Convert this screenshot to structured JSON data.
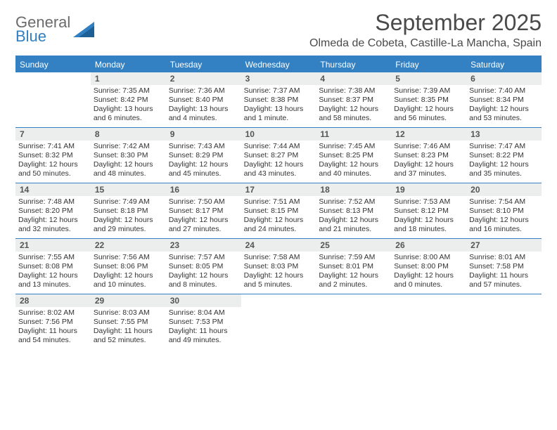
{
  "brand": {
    "name_gray": "General",
    "name_blue": "Blue"
  },
  "title": "September 2025",
  "location": "Olmeda de Cobeta, Castille-La Mancha, Spain",
  "colors": {
    "header_blue": "#3380c2",
    "daynum_bg": "#eceded",
    "text": "#333333",
    "title_text": "#4a4a4a"
  },
  "weekdays": [
    "Sunday",
    "Monday",
    "Tuesday",
    "Wednesday",
    "Thursday",
    "Friday",
    "Saturday"
  ],
  "weeks": [
    [
      {
        "n": "",
        "sunrise": "",
        "sunset": "",
        "daylight": ""
      },
      {
        "n": "1",
        "sunrise": "Sunrise: 7:35 AM",
        "sunset": "Sunset: 8:42 PM",
        "daylight": "Daylight: 13 hours and 6 minutes."
      },
      {
        "n": "2",
        "sunrise": "Sunrise: 7:36 AM",
        "sunset": "Sunset: 8:40 PM",
        "daylight": "Daylight: 13 hours and 4 minutes."
      },
      {
        "n": "3",
        "sunrise": "Sunrise: 7:37 AM",
        "sunset": "Sunset: 8:38 PM",
        "daylight": "Daylight: 13 hours and 1 minute."
      },
      {
        "n": "4",
        "sunrise": "Sunrise: 7:38 AM",
        "sunset": "Sunset: 8:37 PM",
        "daylight": "Daylight: 12 hours and 58 minutes."
      },
      {
        "n": "5",
        "sunrise": "Sunrise: 7:39 AM",
        "sunset": "Sunset: 8:35 PM",
        "daylight": "Daylight: 12 hours and 56 minutes."
      },
      {
        "n": "6",
        "sunrise": "Sunrise: 7:40 AM",
        "sunset": "Sunset: 8:34 PM",
        "daylight": "Daylight: 12 hours and 53 minutes."
      }
    ],
    [
      {
        "n": "7",
        "sunrise": "Sunrise: 7:41 AM",
        "sunset": "Sunset: 8:32 PM",
        "daylight": "Daylight: 12 hours and 50 minutes."
      },
      {
        "n": "8",
        "sunrise": "Sunrise: 7:42 AM",
        "sunset": "Sunset: 8:30 PM",
        "daylight": "Daylight: 12 hours and 48 minutes."
      },
      {
        "n": "9",
        "sunrise": "Sunrise: 7:43 AM",
        "sunset": "Sunset: 8:29 PM",
        "daylight": "Daylight: 12 hours and 45 minutes."
      },
      {
        "n": "10",
        "sunrise": "Sunrise: 7:44 AM",
        "sunset": "Sunset: 8:27 PM",
        "daylight": "Daylight: 12 hours and 43 minutes."
      },
      {
        "n": "11",
        "sunrise": "Sunrise: 7:45 AM",
        "sunset": "Sunset: 8:25 PM",
        "daylight": "Daylight: 12 hours and 40 minutes."
      },
      {
        "n": "12",
        "sunrise": "Sunrise: 7:46 AM",
        "sunset": "Sunset: 8:23 PM",
        "daylight": "Daylight: 12 hours and 37 minutes."
      },
      {
        "n": "13",
        "sunrise": "Sunrise: 7:47 AM",
        "sunset": "Sunset: 8:22 PM",
        "daylight": "Daylight: 12 hours and 35 minutes."
      }
    ],
    [
      {
        "n": "14",
        "sunrise": "Sunrise: 7:48 AM",
        "sunset": "Sunset: 8:20 PM",
        "daylight": "Daylight: 12 hours and 32 minutes."
      },
      {
        "n": "15",
        "sunrise": "Sunrise: 7:49 AM",
        "sunset": "Sunset: 8:18 PM",
        "daylight": "Daylight: 12 hours and 29 minutes."
      },
      {
        "n": "16",
        "sunrise": "Sunrise: 7:50 AM",
        "sunset": "Sunset: 8:17 PM",
        "daylight": "Daylight: 12 hours and 27 minutes."
      },
      {
        "n": "17",
        "sunrise": "Sunrise: 7:51 AM",
        "sunset": "Sunset: 8:15 PM",
        "daylight": "Daylight: 12 hours and 24 minutes."
      },
      {
        "n": "18",
        "sunrise": "Sunrise: 7:52 AM",
        "sunset": "Sunset: 8:13 PM",
        "daylight": "Daylight: 12 hours and 21 minutes."
      },
      {
        "n": "19",
        "sunrise": "Sunrise: 7:53 AM",
        "sunset": "Sunset: 8:12 PM",
        "daylight": "Daylight: 12 hours and 18 minutes."
      },
      {
        "n": "20",
        "sunrise": "Sunrise: 7:54 AM",
        "sunset": "Sunset: 8:10 PM",
        "daylight": "Daylight: 12 hours and 16 minutes."
      }
    ],
    [
      {
        "n": "21",
        "sunrise": "Sunrise: 7:55 AM",
        "sunset": "Sunset: 8:08 PM",
        "daylight": "Daylight: 12 hours and 13 minutes."
      },
      {
        "n": "22",
        "sunrise": "Sunrise: 7:56 AM",
        "sunset": "Sunset: 8:06 PM",
        "daylight": "Daylight: 12 hours and 10 minutes."
      },
      {
        "n": "23",
        "sunrise": "Sunrise: 7:57 AM",
        "sunset": "Sunset: 8:05 PM",
        "daylight": "Daylight: 12 hours and 8 minutes."
      },
      {
        "n": "24",
        "sunrise": "Sunrise: 7:58 AM",
        "sunset": "Sunset: 8:03 PM",
        "daylight": "Daylight: 12 hours and 5 minutes."
      },
      {
        "n": "25",
        "sunrise": "Sunrise: 7:59 AM",
        "sunset": "Sunset: 8:01 PM",
        "daylight": "Daylight: 12 hours and 2 minutes."
      },
      {
        "n": "26",
        "sunrise": "Sunrise: 8:00 AM",
        "sunset": "Sunset: 8:00 PM",
        "daylight": "Daylight: 12 hours and 0 minutes."
      },
      {
        "n": "27",
        "sunrise": "Sunrise: 8:01 AM",
        "sunset": "Sunset: 7:58 PM",
        "daylight": "Daylight: 11 hours and 57 minutes."
      }
    ],
    [
      {
        "n": "28",
        "sunrise": "Sunrise: 8:02 AM",
        "sunset": "Sunset: 7:56 PM",
        "daylight": "Daylight: 11 hours and 54 minutes."
      },
      {
        "n": "29",
        "sunrise": "Sunrise: 8:03 AM",
        "sunset": "Sunset: 7:55 PM",
        "daylight": "Daylight: 11 hours and 52 minutes."
      },
      {
        "n": "30",
        "sunrise": "Sunrise: 8:04 AM",
        "sunset": "Sunset: 7:53 PM",
        "daylight": "Daylight: 11 hours and 49 minutes."
      },
      {
        "n": "",
        "sunrise": "",
        "sunset": "",
        "daylight": ""
      },
      {
        "n": "",
        "sunrise": "",
        "sunset": "",
        "daylight": ""
      },
      {
        "n": "",
        "sunrise": "",
        "sunset": "",
        "daylight": ""
      },
      {
        "n": "",
        "sunrise": "",
        "sunset": "",
        "daylight": ""
      }
    ]
  ]
}
